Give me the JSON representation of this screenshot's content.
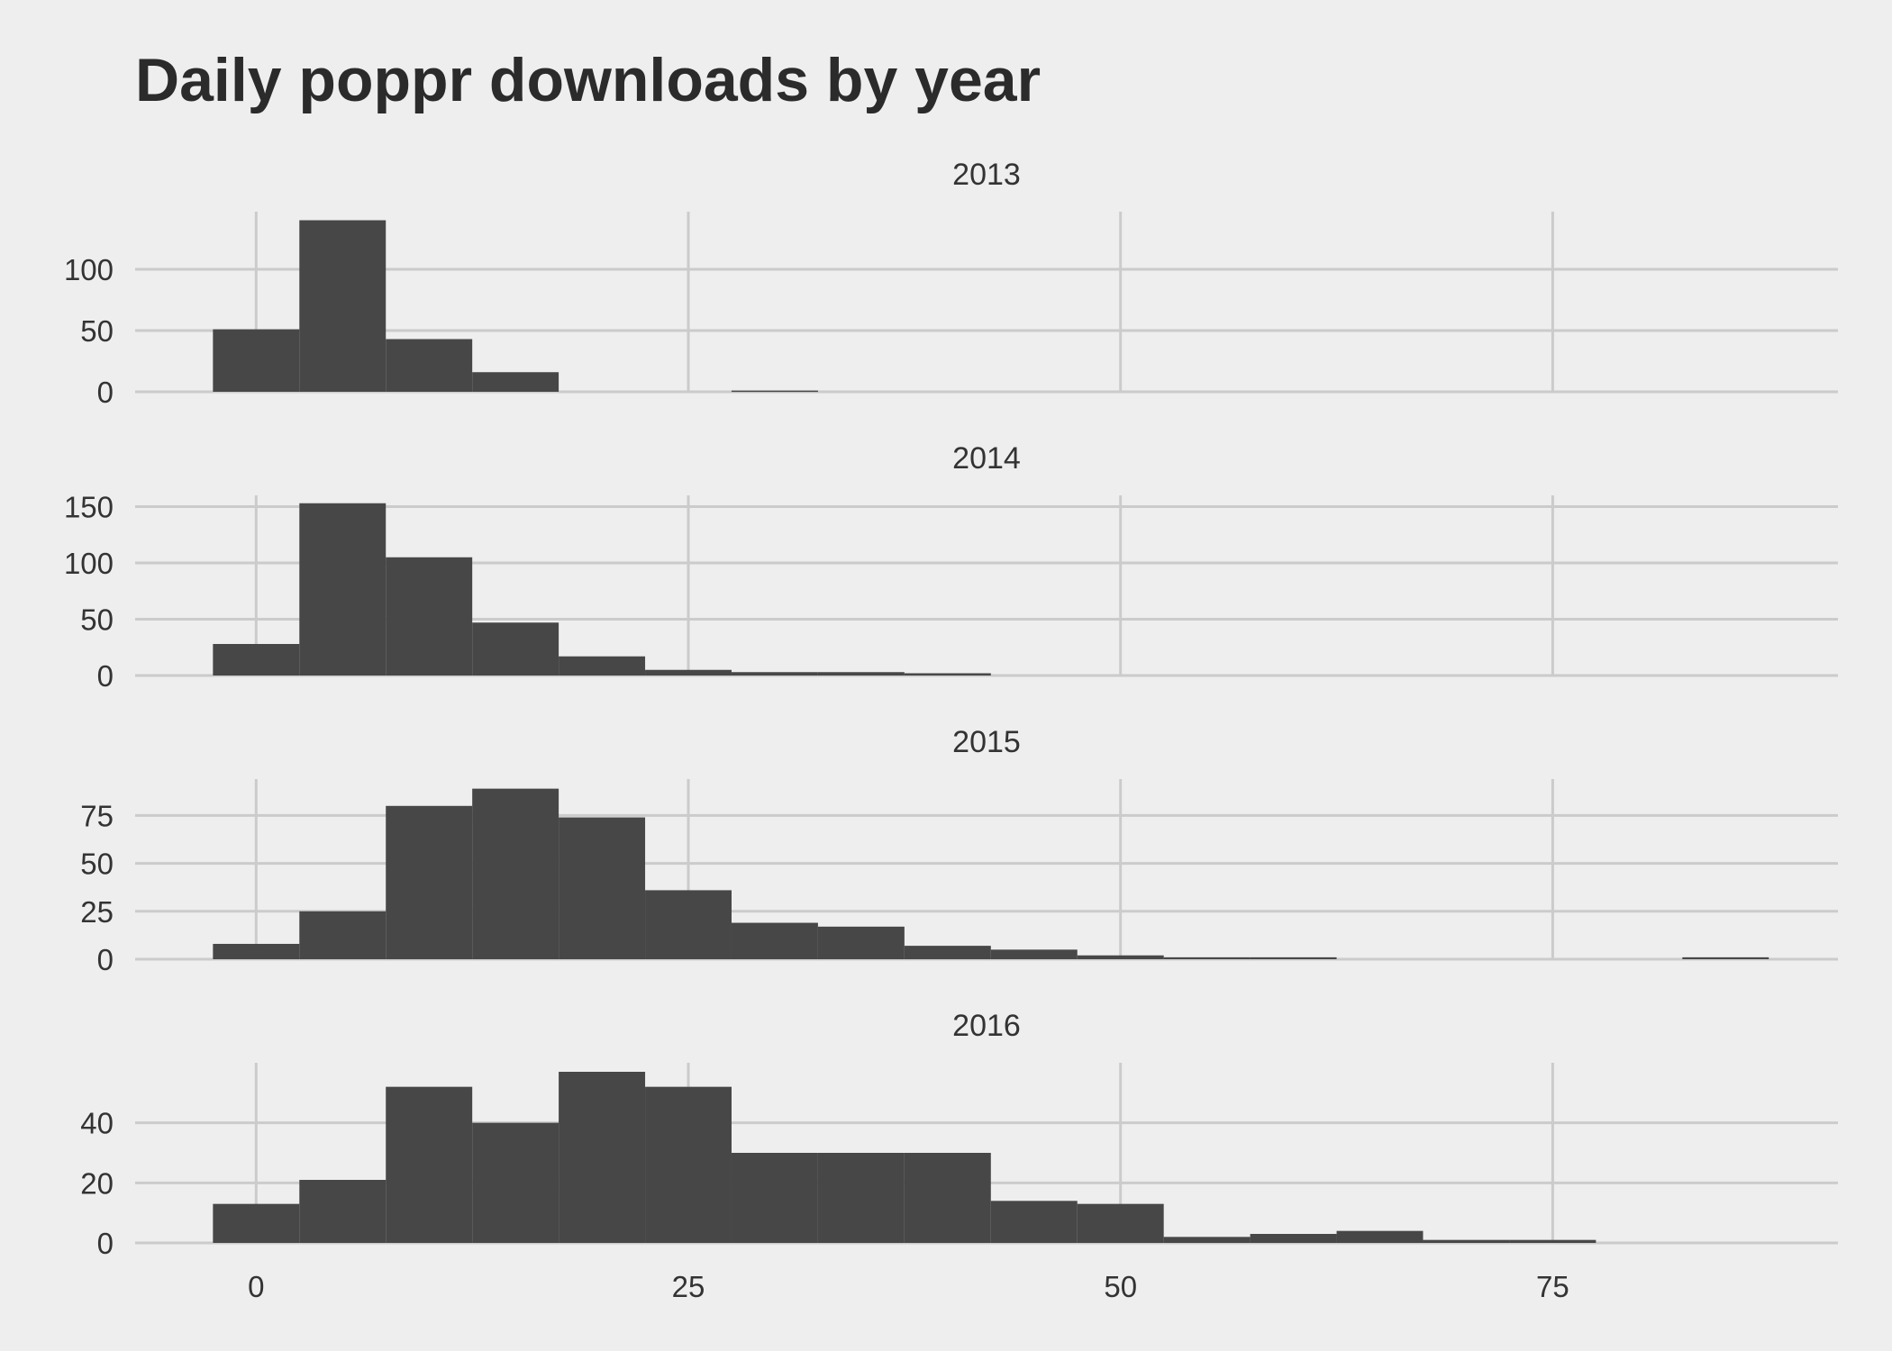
{
  "chart_data": {
    "type": "bar",
    "title": "Daily poppr downloads by year",
    "xlabel": "",
    "ylabel": "",
    "xlim": [
      -7,
      91.5
    ],
    "x_ticks": [
      0,
      25,
      50,
      75
    ],
    "bin_width": 5,
    "bin_centers": [
      0,
      5,
      10,
      15,
      20,
      25,
      30,
      35,
      40,
      45,
      50,
      55,
      60,
      65,
      70,
      75,
      80,
      85
    ],
    "grid": true,
    "bar_color": "#474747",
    "background": "#eeeeee",
    "grid_color": "#cbcbcb",
    "series": [
      {
        "name": "2013",
        "values": [
          51,
          140,
          43,
          16,
          0,
          0,
          1,
          0,
          0,
          0,
          0,
          0,
          0,
          0,
          0,
          0,
          0,
          0
        ],
        "ylim": [
          0,
          147
        ],
        "y_ticks": [
          0,
          50,
          100
        ]
      },
      {
        "name": "2014",
        "values": [
          28,
          153,
          105,
          47,
          17,
          5,
          3,
          3,
          2,
          0,
          0,
          0,
          0,
          0,
          0,
          0,
          0,
          0
        ],
        "ylim": [
          0,
          160
        ],
        "y_ticks": [
          0,
          50,
          100,
          150
        ]
      },
      {
        "name": "2015",
        "values": [
          8,
          25,
          80,
          89,
          74,
          36,
          19,
          17,
          7,
          5,
          2,
          1,
          1,
          0,
          0,
          0,
          0,
          1
        ],
        "ylim": [
          0,
          94
        ],
        "y_ticks": [
          0,
          25,
          50,
          75
        ]
      },
      {
        "name": "2016",
        "values": [
          13,
          21,
          52,
          40,
          57,
          52,
          30,
          30,
          30,
          14,
          13,
          2,
          3,
          4,
          1,
          1,
          0,
          0
        ],
        "ylim": [
          0,
          60
        ],
        "y_ticks": [
          0,
          20,
          40
        ]
      }
    ]
  }
}
